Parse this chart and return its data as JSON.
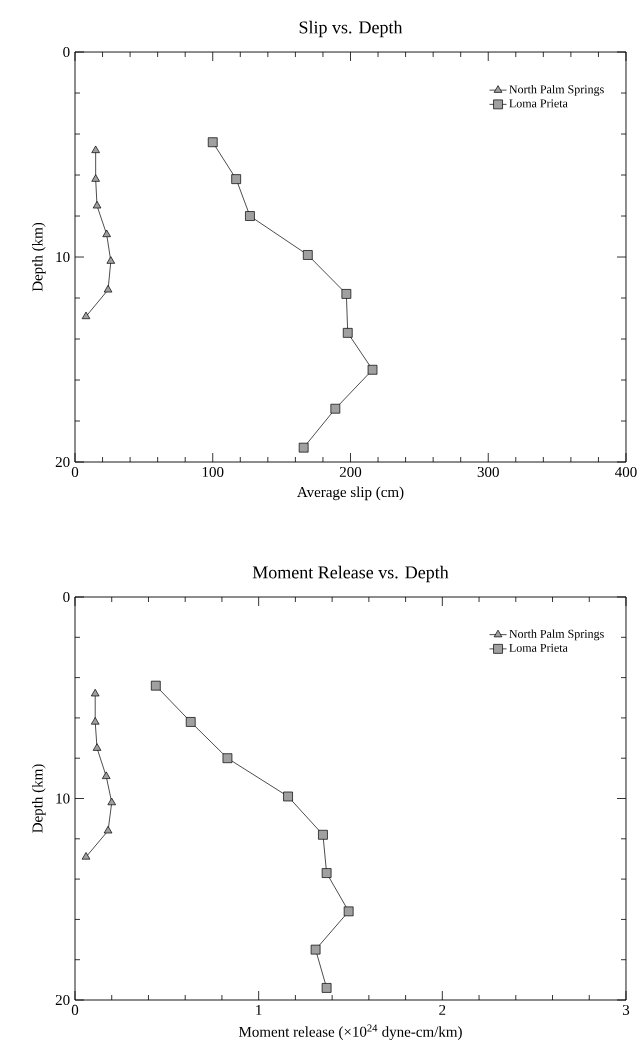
{
  "chart_data": [
    {
      "type": "line",
      "title": "Slip vs. Depth",
      "xlabel": "Average slip (cm)",
      "ylabel": "Depth (km)",
      "xlim": [
        0,
        400
      ],
      "xticks": [
        0,
        100,
        200,
        300,
        400
      ],
      "ylim": [
        20,
        0
      ],
      "yticks": [
        0,
        10,
        20
      ],
      "legend": "top right",
      "series": [
        {
          "name": "North Palm Springs",
          "color": "#a0a0a0",
          "marker": "triangle",
          "x": [
            15,
            15,
            16,
            23,
            26,
            24,
            8
          ],
          "values": [
            4.8,
            6.2,
            7.5,
            8.9,
            10.2,
            11.6,
            12.9
          ]
        },
        {
          "name": "Loma Prieta",
          "color": "#a0a0a0",
          "marker": "square",
          "x": [
            100,
            117,
            127,
            169,
            197,
            198,
            216,
            189,
            166
          ],
          "values": [
            4.4,
            6.2,
            8.0,
            9.9,
            11.8,
            13.7,
            15.5,
            17.4,
            19.3
          ]
        }
      ]
    },
    {
      "type": "line",
      "title": "Moment Release vs. Depth",
      "xlabel": "Moment release (×10$^{24}$ dyne-cm/km)",
      "ylabel": "Depth (km)",
      "xlim": [
        0,
        3
      ],
      "xticks": [
        0,
        1,
        2,
        3
      ],
      "ylim": [
        20,
        0
      ],
      "yticks": [
        0,
        10,
        20
      ],
      "legend": "top right",
      "series": [
        {
          "name": "North Palm Springs",
          "color": "#a0a0a0",
          "marker": "triangle",
          "x": [
            0.11,
            0.11,
            0.12,
            0.17,
            0.2,
            0.18,
            0.06
          ],
          "values": [
            4.8,
            6.2,
            7.5,
            8.9,
            10.2,
            11.6,
            12.9
          ]
        },
        {
          "name": "Loma Prieta",
          "color": "#a0a0a0",
          "marker": "square",
          "x": [
            0.44,
            0.63,
            0.83,
            1.16,
            1.35,
            1.37,
            1.49,
            1.31,
            1.37
          ],
          "values": [
            4.4,
            6.2,
            8.0,
            9.9,
            11.8,
            13.7,
            15.6,
            17.5,
            19.4
          ]
        }
      ]
    }
  ]
}
